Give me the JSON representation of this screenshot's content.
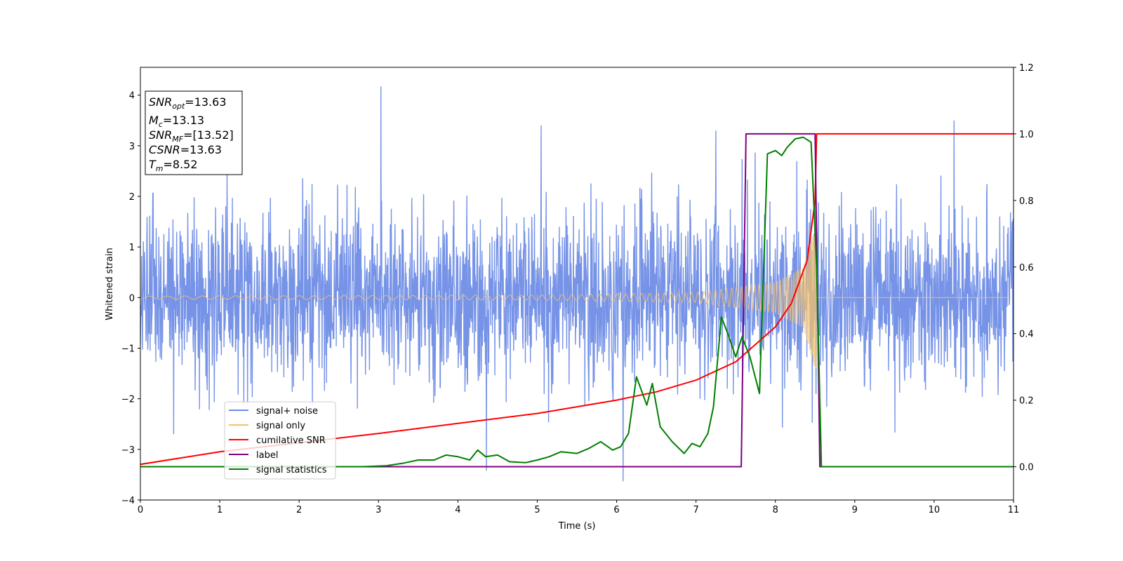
{
  "chart_data": {
    "type": "line",
    "title": "",
    "xlabel": "Time (s)",
    "ylabel": "Whitened strain",
    "xlim": [
      0,
      11
    ],
    "ylim": [
      -4,
      4.55
    ],
    "y2lim": [
      -0.1,
      1.2
    ],
    "grid": false,
    "legend_position": "lower-left",
    "x_ticks": [
      "0",
      "1",
      "2",
      "3",
      "4",
      "5",
      "6",
      "7",
      "8",
      "9",
      "10",
      "11"
    ],
    "y_ticks": [
      "−4",
      "−3",
      "−2",
      "−1",
      "0",
      "1",
      "2",
      "3",
      "4"
    ],
    "y2_ticks": [
      "0.0",
      "0.2",
      "0.4",
      "0.6",
      "0.8",
      "1.0",
      "1.2"
    ],
    "annotation": {
      "line1": {
        "var": "SNR",
        "sub": "opt",
        "value": "=13.63"
      },
      "line2": {
        "var": "M",
        "sub": "c",
        "value": "=13.13"
      },
      "line3": {
        "var": "SNR",
        "sub": "MF",
        "value": "=[13.52]"
      },
      "line4": {
        "var": "CSNR",
        "sub": "",
        "value": "=13.63"
      },
      "line5": {
        "var": "T",
        "sub": "m",
        "value": "=8.52"
      }
    },
    "series": [
      {
        "name": "signal+ noise",
        "color": "#6f8de6",
        "axis": "left",
        "noise_sigma": 0.85,
        "notable_peaks": [
          [
            3.03,
            4.17
          ],
          [
            10.25,
            3.5
          ],
          [
            5.05,
            3.4
          ],
          [
            7.25,
            3.3
          ],
          [
            6.08,
            -3.63
          ],
          [
            4.36,
            -3.42
          ],
          [
            0.42,
            -2.7
          ]
        ]
      },
      {
        "name": "signal only",
        "color": "#f5c16c",
        "axis": "left",
        "chirp_end": 8.52,
        "envelope": [
          [
            0,
            0.03
          ],
          [
            5,
            0.05
          ],
          [
            7,
            0.1
          ],
          [
            8,
            0.3
          ],
          [
            8.35,
            0.6
          ],
          [
            8.5,
            1.4
          ]
        ]
      },
      {
        "name": "cumilative SNR",
        "color": "#ff0000",
        "axis": "right",
        "points": [
          [
            0,
            0.007
          ],
          [
            1,
            0.045
          ],
          [
            2,
            0.072
          ],
          [
            3,
            0.1
          ],
          [
            4,
            0.13
          ],
          [
            5,
            0.16
          ],
          [
            6,
            0.2
          ],
          [
            6.5,
            0.225
          ],
          [
            7,
            0.26
          ],
          [
            7.5,
            0.315
          ],
          [
            8,
            0.42
          ],
          [
            8.2,
            0.49
          ],
          [
            8.4,
            0.62
          ],
          [
            8.5,
            0.8
          ],
          [
            8.52,
            1.0
          ],
          [
            11,
            1.0
          ]
        ]
      },
      {
        "name": "label",
        "color": "#800080",
        "axis": "right",
        "points": [
          [
            0,
            0
          ],
          [
            7.57,
            0
          ],
          [
            7.63,
            1.0
          ],
          [
            8.5,
            1.0
          ],
          [
            8.56,
            0
          ],
          [
            11,
            0
          ]
        ]
      },
      {
        "name": "signal statistics",
        "color": "#008000",
        "axis": "right",
        "points": [
          [
            0,
            0
          ],
          [
            2.8,
            0
          ],
          [
            3.1,
            0.003
          ],
          [
            3.3,
            0.01
          ],
          [
            3.5,
            0.02
          ],
          [
            3.7,
            0.02
          ],
          [
            3.85,
            0.035
          ],
          [
            4.0,
            0.03
          ],
          [
            4.15,
            0.02
          ],
          [
            4.25,
            0.05
          ],
          [
            4.35,
            0.03
          ],
          [
            4.5,
            0.035
          ],
          [
            4.65,
            0.015
          ],
          [
            4.85,
            0.012
          ],
          [
            5.0,
            0.02
          ],
          [
            5.15,
            0.03
          ],
          [
            5.3,
            0.045
          ],
          [
            5.5,
            0.04
          ],
          [
            5.65,
            0.055
          ],
          [
            5.8,
            0.075
          ],
          [
            5.95,
            0.05
          ],
          [
            6.05,
            0.06
          ],
          [
            6.15,
            0.1
          ],
          [
            6.25,
            0.27
          ],
          [
            6.38,
            0.185
          ],
          [
            6.45,
            0.25
          ],
          [
            6.55,
            0.12
          ],
          [
            6.7,
            0.075
          ],
          [
            6.85,
            0.04
          ],
          [
            6.95,
            0.07
          ],
          [
            7.05,
            0.06
          ],
          [
            7.15,
            0.1
          ],
          [
            7.22,
            0.18
          ],
          [
            7.32,
            0.45
          ],
          [
            7.4,
            0.4
          ],
          [
            7.5,
            0.33
          ],
          [
            7.58,
            0.39
          ],
          [
            7.68,
            0.33
          ],
          [
            7.8,
            0.22
          ],
          [
            7.9,
            0.94
          ],
          [
            8.0,
            0.95
          ],
          [
            8.08,
            0.935
          ],
          [
            8.15,
            0.96
          ],
          [
            8.25,
            0.985
          ],
          [
            8.35,
            0.99
          ],
          [
            8.45,
            0.975
          ],
          [
            8.52,
            0.6
          ],
          [
            8.58,
            0
          ],
          [
            11,
            0
          ]
        ]
      }
    ]
  }
}
